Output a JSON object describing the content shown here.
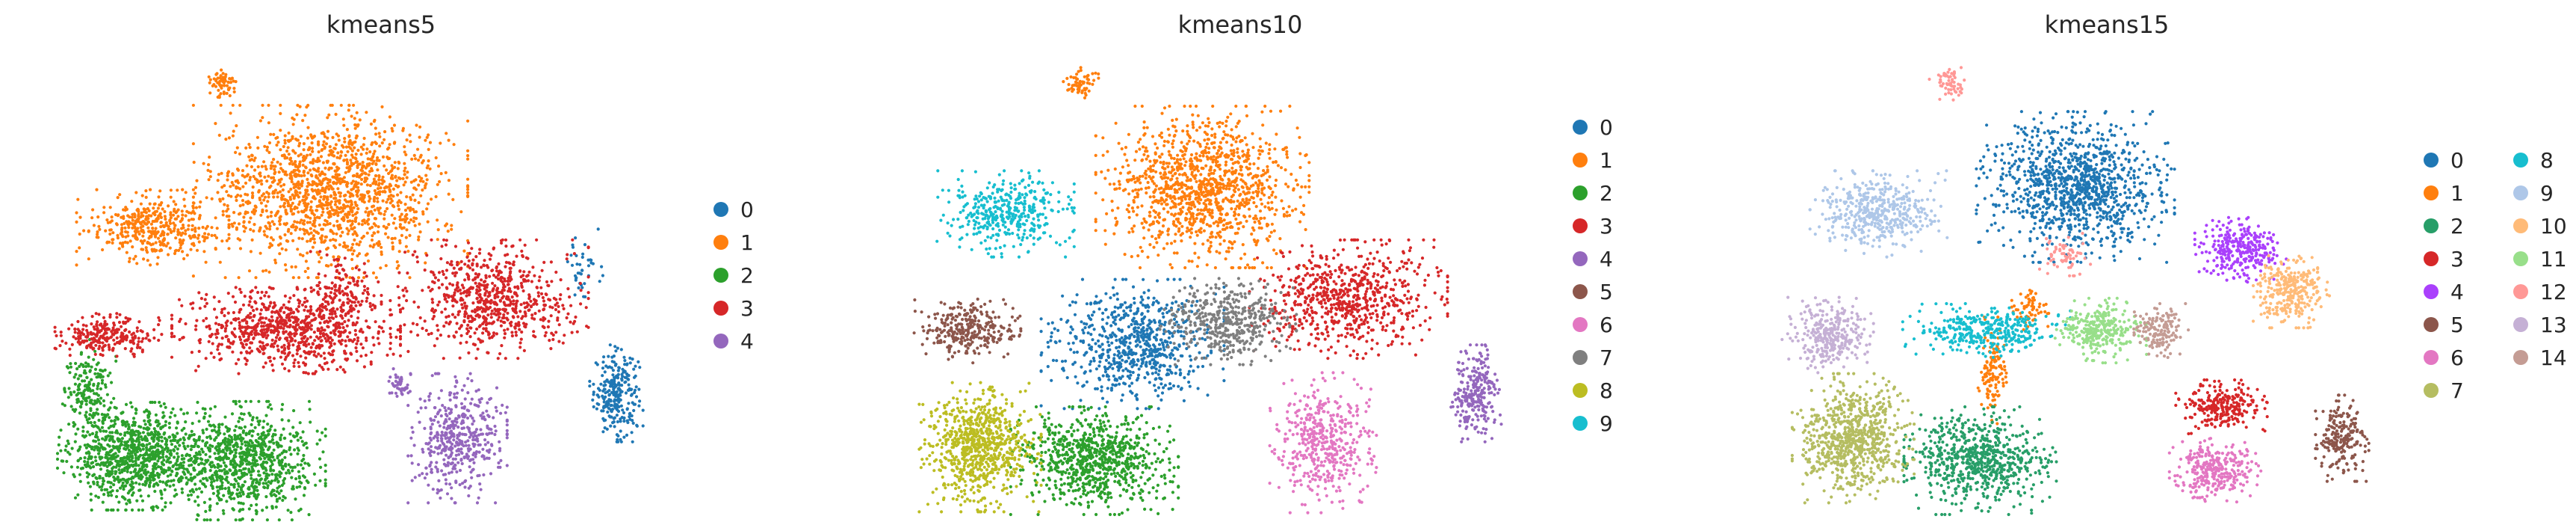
{
  "figure": {
    "panels": [
      {
        "title": "kmeans5",
        "legend_columns": 1,
        "categories": [
          "0",
          "1",
          "2",
          "3",
          "4"
        ]
      },
      {
        "title": "kmeans10",
        "legend_columns": 1,
        "categories": [
          "0",
          "1",
          "2",
          "3",
          "4",
          "5",
          "6",
          "7",
          "8",
          "9"
        ]
      },
      {
        "title": "kmeans15",
        "legend_columns": 2,
        "categories": [
          "0",
          "1",
          "2",
          "3",
          "4",
          "5",
          "6",
          "7",
          "8",
          "9",
          "10",
          "11",
          "12",
          "13",
          "14"
        ]
      }
    ]
  },
  "palette": {
    "tab10": [
      "#1f77b4",
      "#ff7f0e",
      "#2ca02c",
      "#d62728",
      "#9467bd",
      "#8c564b",
      "#e377c2",
      "#7f7f7f",
      "#bcbd22",
      "#17becf"
    ],
    "kmeans15": [
      "#1f77b4",
      "#ff7f0e",
      "#279e68",
      "#d62728",
      "#aa40fc",
      "#8c564b",
      "#e377c2",
      "#b5bd61",
      "#17becf",
      "#aec7e8",
      "#ffbb78",
      "#98df8a",
      "#ff9896",
      "#c5b0d5",
      "#c49c94"
    ]
  },
  "chart_data": [
    {
      "type": "scatter",
      "title": "kmeans5",
      "xlabel": "",
      "ylabel": "",
      "axes": "off",
      "legend_position": "right",
      "categories": [
        "0",
        "1",
        "2",
        "3",
        "4"
      ],
      "clusters": [
        {
          "name": "0",
          "regions": [
            {
              "cx": 0.9,
              "cy": 0.27,
              "rx": 0.035,
              "ry": 0.09,
              "n": 260
            },
            {
              "cx": 0.85,
              "cy": 0.55,
              "rx": 0.025,
              "ry": 0.08,
              "n": 40
            }
          ]
        },
        {
          "name": "1",
          "regions": [
            {
              "cx": 0.45,
              "cy": 0.72,
              "rx": 0.18,
              "ry": 0.16,
              "n": 1500
            },
            {
              "cx": 0.17,
              "cy": 0.64,
              "rx": 0.1,
              "ry": 0.07,
              "n": 420
            },
            {
              "cx": 0.28,
              "cy": 0.96,
              "rx": 0.025,
              "ry": 0.03,
              "n": 60
            }
          ]
        },
        {
          "name": "2",
          "regions": [
            {
              "cx": 0.14,
              "cy": 0.13,
              "rx": 0.1,
              "ry": 0.1,
              "n": 900
            },
            {
              "cx": 0.31,
              "cy": 0.12,
              "rx": 0.11,
              "ry": 0.11,
              "n": 900
            },
            {
              "cx": 0.07,
              "cy": 0.27,
              "rx": 0.035,
              "ry": 0.1,
              "n": 200
            }
          ]
        },
        {
          "name": "3",
          "regions": [
            {
              "cx": 0.7,
              "cy": 0.48,
              "rx": 0.13,
              "ry": 0.11,
              "n": 700
            },
            {
              "cx": 0.38,
              "cy": 0.41,
              "rx": 0.15,
              "ry": 0.08,
              "n": 800
            },
            {
              "cx": 0.1,
              "cy": 0.4,
              "rx": 0.07,
              "ry": 0.04,
              "n": 250
            },
            {
              "cx": 0.47,
              "cy": 0.49,
              "rx": 0.05,
              "ry": 0.08,
              "n": 150
            }
          ]
        },
        {
          "name": "4",
          "regions": [
            {
              "cx": 0.65,
              "cy": 0.17,
              "rx": 0.065,
              "ry": 0.12,
              "n": 450
            },
            {
              "cx": 0.56,
              "cy": 0.29,
              "rx": 0.02,
              "ry": 0.03,
              "n": 40
            }
          ]
        }
      ]
    },
    {
      "type": "scatter",
      "title": "kmeans10",
      "xlabel": "",
      "ylabel": "",
      "axes": "off",
      "legend_position": "right",
      "categories": [
        "0",
        "1",
        "2",
        "3",
        "4",
        "5",
        "6",
        "7",
        "8",
        "9"
      ],
      "clusters": [
        {
          "name": "0",
          "regions": [
            {
              "cx": 0.36,
              "cy": 0.38,
              "rx": 0.12,
              "ry": 0.12,
              "n": 700
            }
          ]
        },
        {
          "name": "1",
          "regions": [
            {
              "cx": 0.47,
              "cy": 0.73,
              "rx": 0.14,
              "ry": 0.15,
              "n": 1200
            },
            {
              "cx": 0.28,
              "cy": 0.96,
              "rx": 0.025,
              "ry": 0.03,
              "n": 60
            }
          ]
        },
        {
          "name": "2",
          "regions": [
            {
              "cx": 0.3,
              "cy": 0.12,
              "rx": 0.11,
              "ry": 0.1,
              "n": 800
            }
          ]
        },
        {
          "name": "3",
          "regions": [
            {
              "cx": 0.7,
              "cy": 0.48,
              "rx": 0.13,
              "ry": 0.11,
              "n": 700
            }
          ]
        },
        {
          "name": "4",
          "regions": [
            {
              "cx": 0.9,
              "cy": 0.27,
              "rx": 0.035,
              "ry": 0.09,
              "n": 260
            }
          ]
        },
        {
          "name": "5",
          "regions": [
            {
              "cx": 0.1,
              "cy": 0.41,
              "rx": 0.07,
              "ry": 0.06,
              "n": 300
            }
          ]
        },
        {
          "name": "6",
          "regions": [
            {
              "cx": 0.66,
              "cy": 0.16,
              "rx": 0.07,
              "ry": 0.13,
              "n": 450
            }
          ]
        },
        {
          "name": "7",
          "regions": [
            {
              "cx": 0.51,
              "cy": 0.43,
              "rx": 0.09,
              "ry": 0.08,
              "n": 450
            }
          ]
        },
        {
          "name": "8",
          "regions": [
            {
              "cx": 0.12,
              "cy": 0.15,
              "rx": 0.08,
              "ry": 0.12,
              "n": 800
            }
          ]
        },
        {
          "name": "9",
          "regions": [
            {
              "cx": 0.16,
              "cy": 0.67,
              "rx": 0.09,
              "ry": 0.08,
              "n": 400
            }
          ]
        }
      ]
    },
    {
      "type": "scatter",
      "title": "kmeans15",
      "xlabel": "",
      "ylabel": "",
      "axes": "off",
      "legend_position": "right",
      "categories": [
        "0",
        "1",
        "2",
        "3",
        "4",
        "5",
        "6",
        "7",
        "8",
        "9",
        "10",
        "11",
        "12",
        "13",
        "14"
      ],
      "clusters": [
        {
          "name": "0",
          "regions": [
            {
              "cx": 0.48,
              "cy": 0.73,
              "rx": 0.13,
              "ry": 0.14,
              "n": 1100
            }
          ]
        },
        {
          "name": "1",
          "regions": [
            {
              "cx": 0.35,
              "cy": 0.32,
              "rx": 0.02,
              "ry": 0.1,
              "n": 120
            },
            {
              "cx": 0.41,
              "cy": 0.46,
              "rx": 0.03,
              "ry": 0.04,
              "n": 60
            }
          ]
        },
        {
          "name": "2",
          "regions": [
            {
              "cx": 0.33,
              "cy": 0.12,
              "rx": 0.1,
              "ry": 0.1,
              "n": 700
            }
          ]
        },
        {
          "name": "3",
          "regions": [
            {
              "cx": 0.71,
              "cy": 0.24,
              "rx": 0.06,
              "ry": 0.05,
              "n": 250
            }
          ]
        },
        {
          "name": "4",
          "regions": [
            {
              "cx": 0.74,
              "cy": 0.59,
              "rx": 0.06,
              "ry": 0.06,
              "n": 300
            }
          ]
        },
        {
          "name": "5",
          "regions": [
            {
              "cx": 0.9,
              "cy": 0.17,
              "rx": 0.035,
              "ry": 0.08,
              "n": 220
            }
          ]
        },
        {
          "name": "6",
          "regions": [
            {
              "cx": 0.7,
              "cy": 0.1,
              "rx": 0.06,
              "ry": 0.06,
              "n": 300
            }
          ]
        },
        {
          "name": "7",
          "regions": [
            {
              "cx": 0.13,
              "cy": 0.17,
              "rx": 0.08,
              "ry": 0.12,
              "n": 750
            }
          ]
        },
        {
          "name": "8",
          "regions": [
            {
              "cx": 0.34,
              "cy": 0.41,
              "rx": 0.11,
              "ry": 0.05,
              "n": 350
            }
          ]
        },
        {
          "name": "9",
          "regions": [
            {
              "cx": 0.17,
              "cy": 0.67,
              "rx": 0.09,
              "ry": 0.08,
              "n": 450
            }
          ]
        },
        {
          "name": "10",
          "regions": [
            {
              "cx": 0.82,
              "cy": 0.5,
              "rx": 0.05,
              "ry": 0.07,
              "n": 300
            }
          ]
        },
        {
          "name": "11",
          "regions": [
            {
              "cx": 0.52,
              "cy": 0.41,
              "rx": 0.06,
              "ry": 0.06,
              "n": 300
            }
          ]
        },
        {
          "name": "12",
          "regions": [
            {
              "cx": 0.28,
              "cy": 0.96,
              "rx": 0.025,
              "ry": 0.03,
              "n": 60
            },
            {
              "cx": 0.46,
              "cy": 0.58,
              "rx": 0.04,
              "ry": 0.04,
              "n": 60
            }
          ]
        },
        {
          "name": "13",
          "regions": [
            {
              "cx": 0.09,
              "cy": 0.4,
              "rx": 0.06,
              "ry": 0.07,
              "n": 300
            }
          ]
        },
        {
          "name": "14",
          "regions": [
            {
              "cx": 0.61,
              "cy": 0.41,
              "rx": 0.04,
              "ry": 0.05,
              "n": 150
            }
          ]
        }
      ]
    }
  ]
}
